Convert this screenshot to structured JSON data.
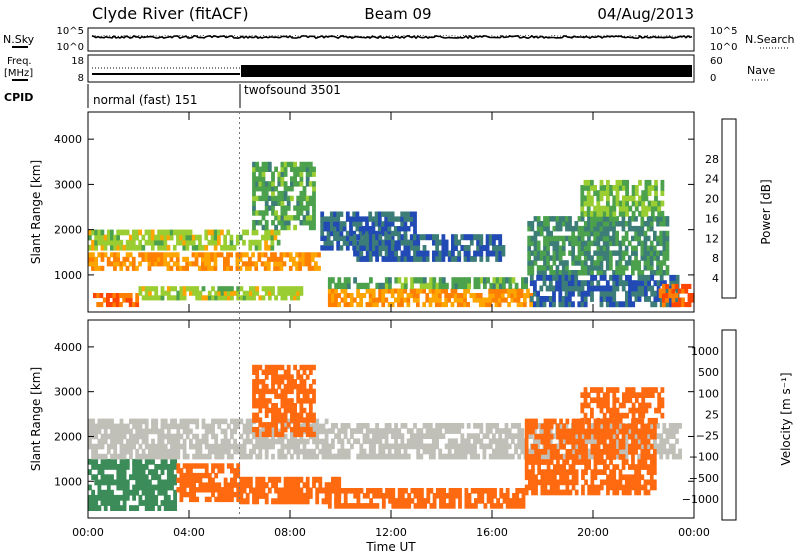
{
  "header": {
    "station": "Clyde River (fitACF)",
    "beam": "Beam 09",
    "date": "04/Aug/2013"
  },
  "noise_panel": {
    "left_label": "N.Sky",
    "right_label": "N.Search",
    "ticks_left": [
      "10^5",
      "10^0"
    ],
    "ticks_right": [
      "10^5",
      "10^0"
    ]
  },
  "freq_panel": {
    "left_label_top": "Freq.",
    "left_label_unit": "[MHz]",
    "right_label": "Nave",
    "ticks_left": [
      "18",
      "8"
    ],
    "ticks_right": [
      "60",
      "0"
    ]
  },
  "cpid_panel": {
    "label": "CPID",
    "segments": [
      {
        "name": "normal (fast) 151",
        "start_hour": 0,
        "end_hour": 6
      },
      {
        "name": "twofsound 3501",
        "start_hour": 6,
        "end_hour": 24
      }
    ]
  },
  "x_axis": {
    "title": "Time UT",
    "ticks": [
      "00:00",
      "04:00",
      "08:00",
      "12:00",
      "16:00",
      "20:00",
      "00:00"
    ],
    "range_hours": [
      0,
      24
    ]
  },
  "power_panel": {
    "ylabel": "Slant Range [km]",
    "yticks": [
      "1000",
      "2000",
      "3000",
      "4000"
    ],
    "yrange_km": [
      180,
      4600
    ],
    "colorbar_label": "Power [dB]",
    "colorbar_ticks": [
      "4",
      "8",
      "12",
      "16",
      "20",
      "24",
      "28"
    ],
    "colors": [
      "#0000ff",
      "#224ab4",
      "#3c7d78",
      "#4ca14c",
      "#9acd32",
      "#ffa500",
      "#ff7f00",
      "#ff4500",
      "#ff0000"
    ]
  },
  "velocity_panel": {
    "ylabel": "Slant Range [km]",
    "yticks": [
      "1000",
      "2000",
      "3000",
      "4000"
    ],
    "yrange_km": [
      180,
      4600
    ],
    "colorbar_label": "Velocity [m s⁻¹]",
    "colorbar_ticks": [
      "1000",
      "500",
      "100",
      "25",
      "−25",
      "−100",
      "−500",
      "−1000"
    ],
    "colors": [
      "#1f3fbf",
      "#3370a0",
      "#3c8c5a",
      "#55c840",
      "#c0c0b8",
      "#ff9a20",
      "#ff6a10",
      "#ff3a00",
      "#ee0000"
    ],
    "ground_scatter_color": "#b4b4aa"
  },
  "chart_data": [
    {
      "type": "heatmap",
      "title": "Power",
      "xlabel": "Time UT",
      "ylabel": "Slant Range [km]",
      "xlim_hours": [
        0,
        24
      ],
      "ylim_km": [
        180,
        4600
      ],
      "colorbar": {
        "label": "Power [dB]",
        "ticks": [
          4,
          8,
          12,
          16,
          20,
          24,
          28
        ]
      },
      "regions": [
        {
          "t0": 0.0,
          "t1": 9.2,
          "r0": 1100,
          "r1": 1500,
          "value": 24
        },
        {
          "t0": 0.0,
          "t1": 7.6,
          "r0": 1550,
          "r1": 2000,
          "value": 18
        },
        {
          "t0": 0.2,
          "t1": 2.0,
          "r0": 300,
          "r1": 600,
          "value": 28
        },
        {
          "t0": 2.0,
          "t1": 8.5,
          "r0": 450,
          "r1": 750,
          "value": 18
        },
        {
          "t0": 6.5,
          "t1": 9.0,
          "r0": 2000,
          "r1": 3500,
          "value": 14
        },
        {
          "t0": 9.2,
          "t1": 13.0,
          "r0": 1550,
          "r1": 2400,
          "value": 8
        },
        {
          "t0": 9.5,
          "t1": 17.6,
          "r0": 300,
          "r1": 700,
          "value": 24
        },
        {
          "t0": 9.5,
          "t1": 17.4,
          "r0": 700,
          "r1": 950,
          "value": 14
        },
        {
          "t0": 10.5,
          "t1": 16.5,
          "r0": 1300,
          "r1": 1900,
          "value": 8
        },
        {
          "t0": 17.4,
          "t1": 23.0,
          "r0": 1000,
          "r1": 2300,
          "value": 12
        },
        {
          "t0": 17.5,
          "t1": 23.4,
          "r0": 300,
          "r1": 1000,
          "value": 8
        },
        {
          "t0": 19.5,
          "t1": 22.8,
          "r0": 2300,
          "r1": 3100,
          "value": 16
        },
        {
          "t0": 22.6,
          "t1": 24.0,
          "r0": 300,
          "r1": 800,
          "value": 28
        }
      ]
    },
    {
      "type": "heatmap",
      "title": "Velocity",
      "xlabel": "Time UT",
      "ylabel": "Slant Range [km]",
      "xlim_hours": [
        0,
        24
      ],
      "ylim_km": [
        180,
        4600
      ],
      "colorbar": {
        "label": "Velocity [m s⁻¹]",
        "ticks": [
          1000,
          500,
          100,
          25,
          -25,
          -100,
          -500,
          -1000
        ]
      },
      "regions": [
        {
          "t0": 0.0,
          "t1": 3.5,
          "r0": 350,
          "r1": 1500,
          "value": 300
        },
        {
          "t0": 0.0,
          "t1": 9.5,
          "r0": 1500,
          "r1": 2400,
          "value": 0
        },
        {
          "t0": 3.5,
          "t1": 6.0,
          "r0": 550,
          "r1": 1400,
          "value": -150
        },
        {
          "t0": 6.0,
          "t1": 10.0,
          "r0": 500,
          "r1": 1100,
          "value": -200
        },
        {
          "t0": 6.5,
          "t1": 9.0,
          "r0": 2000,
          "r1": 3600,
          "value": -120
        },
        {
          "t0": 9.5,
          "t1": 17.3,
          "r0": 400,
          "r1": 850,
          "value": -300
        },
        {
          "t0": 9.5,
          "t1": 23.5,
          "r0": 1500,
          "r1": 2300,
          "value": 0
        },
        {
          "t0": 17.3,
          "t1": 22.5,
          "r0": 700,
          "r1": 2400,
          "value": -250
        },
        {
          "t0": 19.5,
          "t1": 22.8,
          "r0": 2300,
          "r1": 3100,
          "value": -300
        }
      ]
    }
  ]
}
